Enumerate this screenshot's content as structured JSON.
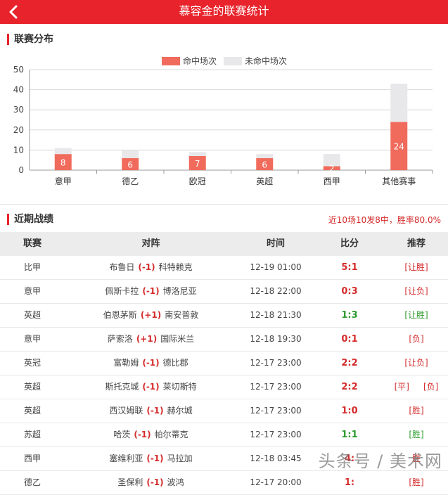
{
  "header": {
    "title": "慕容金的联赛统计",
    "back_icon": "chevron-left-icon"
  },
  "league_section": {
    "title": "联赛分布"
  },
  "chart_data": {
    "type": "bar",
    "stacked": true,
    "categories": [
      "意甲",
      "德乙",
      "欧冠",
      "英超",
      "西甲",
      "其他赛事"
    ],
    "series": [
      {
        "name": "命中场次",
        "color": "#f06b5c",
        "values": [
          8,
          6,
          7,
          6,
          2,
          24
        ]
      },
      {
        "name": "未命中场次",
        "color": "#e8e8ea",
        "values": [
          3,
          4,
          2,
          2,
          6,
          19
        ]
      }
    ],
    "ylim": [
      0,
      50
    ],
    "yticks": [
      0,
      10,
      20,
      30,
      40,
      50
    ],
    "grid": true,
    "legend": "top-center",
    "data_labels": [
      "8",
      "6",
      "7",
      "6",
      "2",
      "24"
    ]
  },
  "recent_section": {
    "title": "近期战绩",
    "summary": "近10场10发8中，胜率80.0%"
  },
  "table": {
    "columns": [
      "联赛",
      "对阵",
      "时间",
      "比分",
      "推荐"
    ],
    "rows": [
      {
        "league": "比甲",
        "home": "布鲁日",
        "handicap": "(-1)",
        "away": "科特赖克",
        "time": "12-19 01:00",
        "score": "5:1",
        "score_color": "red",
        "rec": [
          "[让胜]"
        ],
        "rec_color": "red"
      },
      {
        "league": "意甲",
        "home": "佩斯卡拉",
        "handicap": "(-1)",
        "away": "博洛尼亚",
        "time": "12-18 22:00",
        "score": "0:3",
        "score_color": "red",
        "rec": [
          "[让负]"
        ],
        "rec_color": "red"
      },
      {
        "league": "英超",
        "home": "伯恩茅斯",
        "handicap": "(+1)",
        "away": "南安普敦",
        "time": "12-18 21:30",
        "score": "1:3",
        "score_color": "green",
        "rec": [
          "[让胜]"
        ],
        "rec_color": "green"
      },
      {
        "league": "意甲",
        "home": "萨索洛",
        "handicap": "(+1)",
        "away": "国际米兰",
        "time": "12-18 19:30",
        "score": "0:1",
        "score_color": "red",
        "rec": [
          "[负]"
        ],
        "rec_color": "red"
      },
      {
        "league": "英冠",
        "home": "富勒姆",
        "handicap": "(-1)",
        "away": "德比郡",
        "time": "12-17 23:00",
        "score": "2:2",
        "score_color": "red",
        "rec": [
          "[让负]"
        ],
        "rec_color": "red"
      },
      {
        "league": "英超",
        "home": "斯托克城",
        "handicap": "(-1)",
        "away": "莱切斯特",
        "time": "12-17 23:00",
        "score": "2:2",
        "score_color": "red",
        "rec": [
          "[平]",
          "[负]"
        ],
        "rec_color": "red"
      },
      {
        "league": "英超",
        "home": "西汉姆联",
        "handicap": "(-1)",
        "away": "赫尔城",
        "time": "12-17 23:00",
        "score": "1:0",
        "score_color": "red",
        "rec": [
          "[胜]"
        ],
        "rec_color": "red"
      },
      {
        "league": "苏超",
        "home": "哈茨",
        "handicap": "(-1)",
        "away": "帕尔蒂克",
        "time": "12-17 23:00",
        "score": "1:1",
        "score_color": "green",
        "rec": [
          "[胜]"
        ],
        "rec_color": "green"
      },
      {
        "league": "西甲",
        "home": "塞维利亚",
        "handicap": "(-1)",
        "away": "马拉加",
        "time": "12-18 03:45",
        "score": "4:",
        "score_color": "red",
        "rec": [
          "胜"
        ],
        "rec_color": "red"
      },
      {
        "league": "德乙",
        "home": "圣保利",
        "handicap": "(-1)",
        "away": "波鸿",
        "time": "12-17 20:00",
        "score": "1:",
        "score_color": "red",
        "rec": [
          "[胜]"
        ],
        "rec_color": "red"
      }
    ]
  },
  "watermark": "头条号 / 美术网"
}
